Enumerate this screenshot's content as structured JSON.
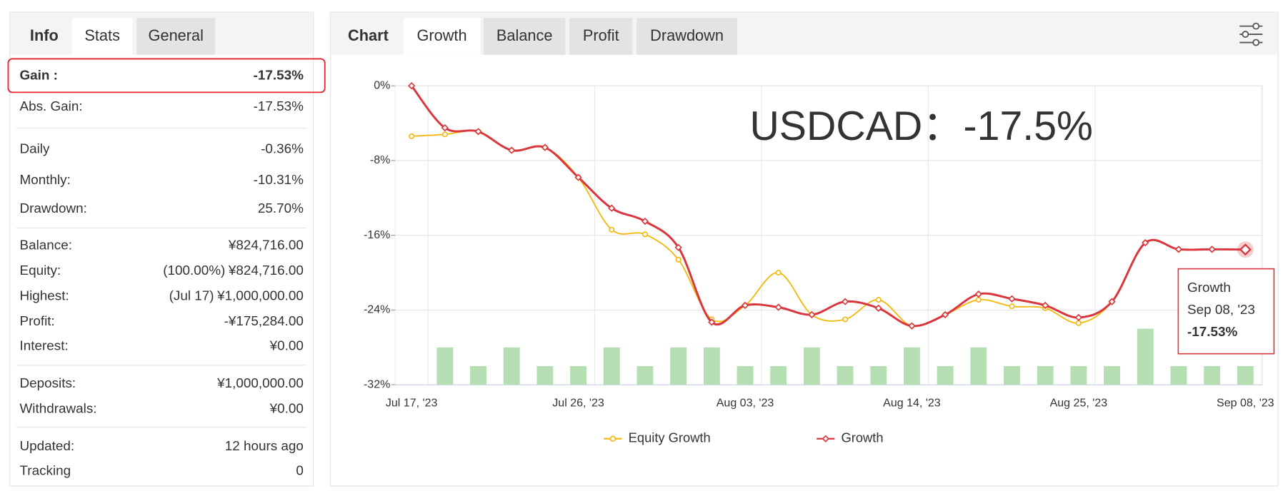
{
  "info_panel": {
    "tabs": [
      "Info",
      "Stats",
      "General"
    ],
    "active_tab": 1,
    "groups": [
      [
        {
          "label": "Gain :",
          "value": "-17.53%",
          "color": "#d9363e",
          "highlight": true
        },
        {
          "label": "Abs. Gain:",
          "value": "-17.53%",
          "color": "#d9363e"
        }
      ],
      [
        {
          "label": "Daily",
          "value": "-0.36%"
        },
        {
          "label": "Monthly:",
          "value": "-10.31%"
        },
        {
          "label": "Drawdown:",
          "value": "25.70%"
        }
      ],
      [
        {
          "label": "Balance:",
          "value": "¥824,716.00"
        },
        {
          "label": "Equity:",
          "note": "(100.00%)",
          "value": "¥824,716.00"
        },
        {
          "label": "Highest:",
          "note": "(Jul 17)",
          "value": "¥1,000,000.00"
        },
        {
          "label": "Profit:",
          "value": "-¥175,284.00",
          "color": "#d9363e"
        },
        {
          "label": "Interest:",
          "value": "¥0.00"
        }
      ],
      [
        {
          "label": "Deposits:",
          "value": "¥1,000,000.00"
        },
        {
          "label": "Withdrawals:",
          "value": "¥0.00"
        }
      ],
      [
        {
          "label": "Updated:",
          "value": "12 hours ago"
        },
        {
          "label": "Tracking",
          "value": "0"
        }
      ]
    ]
  },
  "chart_panel": {
    "tabs": [
      "Chart",
      "Growth",
      "Balance",
      "Profit",
      "Drawdown"
    ],
    "active_tab": 1
  },
  "chart_data": {
    "type": "line",
    "annotation": "USDCAD：-17.5%",
    "categories": [
      "Jul 17, '23",
      null,
      null,
      null,
      null,
      "Jul 26, '23",
      null,
      null,
      null,
      null,
      "Aug 03, '23",
      null,
      null,
      null,
      null,
      "Aug 14, '23",
      null,
      null,
      null,
      null,
      "Aug 25, '23",
      null,
      null,
      null,
      null,
      "Sep 08, '23"
    ],
    "series": [
      {
        "name": "Equity Growth",
        "color": "#f2b90f",
        "values": [
          -5.4,
          -5.2,
          -4.9,
          -6.9,
          -6.6,
          -9.8,
          -15.4,
          -15.9,
          -18.6,
          -25.0,
          -23.5,
          -20.0,
          -24.5,
          -25.0,
          -22.9,
          -25.7,
          -24.5,
          -22.9,
          -23.6,
          -23.8,
          -25.4,
          -23.1,
          -16.8,
          -17.5,
          -17.5,
          -17.5
        ]
      },
      {
        "name": "Growth",
        "color": "#d9363e",
        "values": [
          0,
          -4.5,
          -4.9,
          -6.9,
          -6.6,
          -9.8,
          -13.1,
          -14.5,
          -17.3,
          -25.3,
          -23.5,
          -23.7,
          -24.5,
          -23.1,
          -23.8,
          -25.7,
          -24.5,
          -22.3,
          -22.8,
          -23.5,
          -24.8,
          -23.1,
          -16.8,
          -17.5,
          -17.5,
          -17.53
        ]
      }
    ],
    "volume": {
      "color": "#b5dfb2",
      "values": [
        null,
        2,
        1,
        2,
        1,
        1,
        2,
        1,
        2,
        2,
        1,
        1,
        2,
        1,
        1,
        2,
        1,
        2,
        1,
        1,
        1,
        1,
        3,
        1,
        1,
        1
      ],
      "ylim": [
        0,
        16
      ]
    },
    "ylim": [
      -32,
      0
    ],
    "yticks": [
      {
        "value": 0,
        "label": "0%"
      },
      {
        "value": -8,
        "label": "-8%"
      },
      {
        "value": -16,
        "label": "-16%"
      },
      {
        "value": -24,
        "label": "-24%"
      },
      {
        "value": -32,
        "label": "-32%"
      }
    ],
    "grid": true,
    "tooltip": {
      "series": 1,
      "index": 25,
      "label": "-17.53%"
    }
  }
}
